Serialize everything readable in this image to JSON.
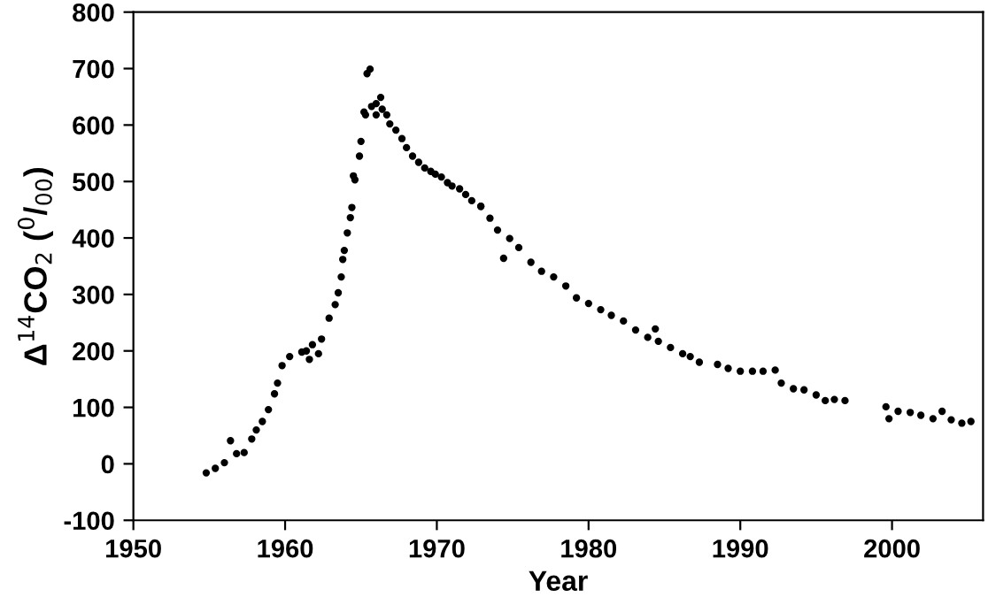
{
  "chart_data": {
    "type": "scatter",
    "xlabel": "Year",
    "ylabel": "Δ$^{14}$CO$_{2}$ ($^{0}$/$_{00}$)",
    "xlim": [
      1950,
      2006
    ],
    "xticks": [
      1950,
      1960,
      1970,
      1980,
      1990,
      2000
    ],
    "ylim": [
      -100,
      800
    ],
    "yticks": [
      -100,
      0,
      100,
      200,
      300,
      400,
      500,
      600,
      700,
      800
    ],
    "grid": false,
    "legend": false,
    "marker": "circle",
    "series": [
      {
        "color": "#000000",
        "x": [
          1954.8,
          1955.4,
          1956.0,
          1956.4,
          1956.8,
          1957.3,
          1957.8,
          1958.1,
          1958.5,
          1958.9,
          1959.3,
          1959.5,
          1959.8,
          1960.3,
          1961.1,
          1961.4,
          1961.6,
          1961.8,
          1962.2,
          1962.4,
          1962.9,
          1963.3,
          1963.5,
          1963.7,
          1963.8,
          1963.9,
          1964.1,
          1964.3,
          1964.4,
          1964.6,
          1964.5,
          1964.9,
          1965.0,
          1965.2,
          1965.4,
          1965.6,
          1965.3,
          1965.7,
          1966.0,
          1966.3,
          1966.0,
          1966.4,
          1966.7,
          1966.9,
          1967.3,
          1967.7,
          1968.0,
          1968.4,
          1968.8,
          1969.2,
          1969.6,
          1969.9,
          1970.3,
          1970.7,
          1971.0,
          1971.5,
          1971.9,
          1972.3,
          1972.9,
          1972.9,
          1973.5,
          1974.0,
          1974.4,
          1974.8,
          1975.4,
          1976.2,
          1976.9,
          1977.7,
          1978.5,
          1979.2,
          1980.0,
          1980.8,
          1981.5,
          1982.3,
          1983.1,
          1983.9,
          1984.4,
          1984.6,
          1985.4,
          1986.2,
          1986.7,
          1987.3,
          1988.5,
          1989.2,
          1990.0,
          1990.8,
          1991.5,
          1992.3,
          1992.7,
          1993.5,
          1994.2,
          1995.0,
          1995.6,
          1996.2,
          1996.9,
          1999.6,
          1999.8,
          2000.4,
          2001.2,
          2001.9,
          2002.7,
          2003.3,
          2003.9,
          2004.6,
          2005.2
        ],
        "values": [
          -16,
          -8,
          2,
          41,
          18,
          20,
          44,
          60,
          75,
          96,
          124,
          143,
          174,
          190,
          198,
          200,
          185,
          211,
          195,
          221,
          258,
          282,
          303,
          331,
          362,
          378,
          409,
          436,
          454,
          503,
          510,
          545,
          571,
          623,
          691,
          699,
          618,
          633,
          638,
          649,
          618,
          628,
          618,
          602,
          591,
          576,
          560,
          545,
          534,
          524,
          518,
          513,
          508,
          498,
          492,
          487,
          477,
          466,
          456,
          456,
          435,
          414,
          364,
          399,
          383,
          357,
          341,
          331,
          315,
          294,
          284,
          273,
          263,
          253,
          237,
          224,
          239,
          217,
          206,
          195,
          190,
          180,
          176,
          169,
          164,
          164,
          164,
          166,
          143,
          133,
          131,
          122,
          112,
          114,
          112,
          101,
          80,
          93,
          91,
          86,
          80,
          93,
          78,
          72,
          75
        ]
      }
    ]
  }
}
